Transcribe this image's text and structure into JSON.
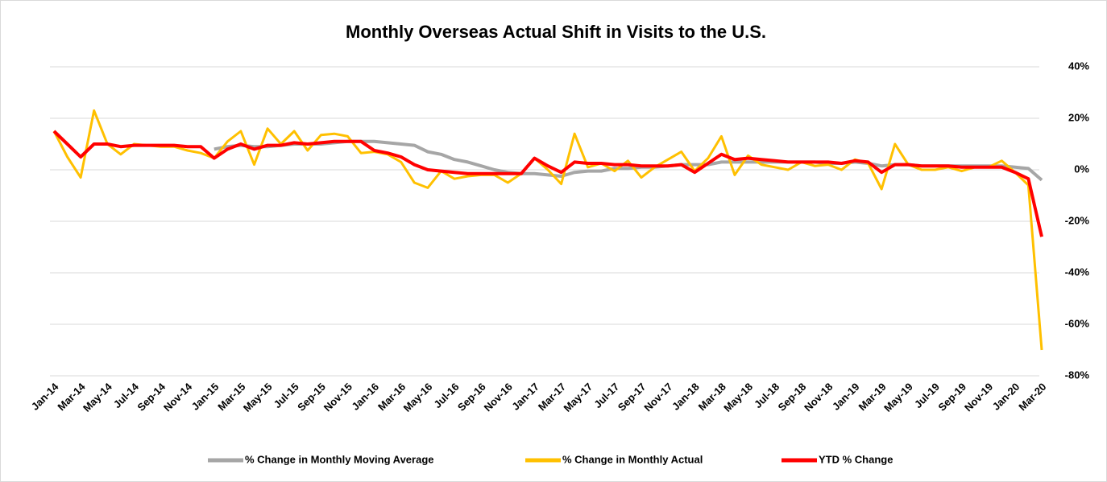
{
  "chart_data": {
    "type": "line",
    "title": "Monthly Overseas Actual Shift in Visits to the U.S.",
    "categories": [
      "Jan-14",
      null,
      "Mar-14",
      null,
      "May-14",
      null,
      "Jul-14",
      null,
      "Sep-14",
      null,
      "Nov-14",
      null,
      "Jan-15",
      null,
      "Mar-15",
      null,
      "May-15",
      null,
      "Jul-15",
      null,
      "Sep-15",
      null,
      "Nov-15",
      null,
      "Jan-16",
      null,
      "Mar-16",
      null,
      "May-16",
      null,
      "Jul-16",
      null,
      "Sep-16",
      null,
      "Nov-16",
      null,
      "Jan-17",
      null,
      "Mar-17",
      null,
      "May-17",
      null,
      "Jul-17",
      null,
      "Sep-17",
      null,
      "Nov-17",
      null,
      "Jan-18",
      null,
      "Mar-18",
      null,
      "May-18",
      null,
      "Jul-18",
      null,
      "Sep-18",
      null,
      "Nov-18",
      null,
      "Jan-19",
      null,
      "Mar-19",
      null,
      "May-19",
      null,
      "Jul-19",
      null,
      "Sep-19",
      null,
      "Nov-19",
      null,
      "Jan-20",
      null,
      "Mar-20"
    ],
    "series": [
      {
        "name": "% Change in Monthly Moving Average",
        "color": "#a6a6a6",
        "width": 4,
        "values": [
          null,
          null,
          null,
          null,
          null,
          null,
          null,
          null,
          null,
          null,
          null,
          null,
          8,
          9,
          9.5,
          9,
          9,
          9.5,
          10,
          10,
          10,
          10.5,
          11,
          11,
          11,
          10.5,
          10,
          9.5,
          7,
          6,
          4,
          3,
          1.5,
          0,
          -1,
          -1.5,
          -1.5,
          -2,
          -2.5,
          -1,
          -0.5,
          -0.5,
          0.5,
          0.5,
          1,
          1,
          1.5,
          2,
          2,
          2,
          3,
          3,
          3,
          3,
          3,
          3,
          3,
          3,
          2.5,
          2.5,
          3,
          2.5,
          1.5,
          2,
          2,
          1.5,
          1.5,
          1.5,
          1.5,
          1.5,
          1.5,
          1.5,
          1,
          0.5,
          -4
        ]
      },
      {
        "name": "% Change in Monthly Actual",
        "color": "#ffc000",
        "width": 3,
        "values": [
          15,
          5,
          -3,
          23,
          10,
          6,
          10,
          9.5,
          9,
          9,
          7.5,
          6.5,
          4.5,
          11,
          15,
          2,
          16,
          10,
          15,
          7.5,
          13.5,
          14,
          13,
          6.5,
          7,
          6,
          3,
          -5,
          -7,
          -0.5,
          -3.5,
          -2.5,
          -2,
          -2,
          -5,
          -1.5,
          4.5,
          0,
          -5.5,
          14,
          1,
          2.5,
          -0.5,
          3.5,
          -3,
          1,
          4,
          7,
          -0.5,
          4.5,
          13,
          -2,
          5.5,
          2,
          1,
          0,
          3,
          1.5,
          2,
          0,
          4,
          2.5,
          -7.5,
          10,
          2,
          0,
          0,
          1,
          -0.5,
          1,
          1,
          3.5,
          -1,
          -6,
          -70
        ]
      },
      {
        "name": "YTD % Change",
        "color": "#ff0000",
        "width": 4,
        "values": [
          15,
          10,
          5,
          10,
          10,
          9,
          9.5,
          9.5,
          9.5,
          9.5,
          9,
          9,
          4.5,
          8,
          10,
          8,
          9.5,
          9.5,
          10.5,
          10,
          10.5,
          11,
          11,
          11,
          7.5,
          6.5,
          5,
          2,
          0,
          -0.5,
          -1,
          -1.5,
          -1.5,
          -1.5,
          -1.5,
          -1.5,
          4.5,
          1.5,
          -1,
          3,
          2.5,
          2.5,
          2,
          2,
          1.5,
          1.5,
          1.5,
          2,
          -1,
          2.5,
          6,
          4,
          4.5,
          4,
          3.5,
          3,
          3,
          3,
          3,
          2.5,
          3.5,
          3,
          -1,
          2,
          2,
          1.5,
          1.5,
          1.5,
          1,
          1,
          1,
          1,
          -1,
          -3.5,
          -26
        ]
      }
    ],
    "ylim": [
      -80,
      40
    ],
    "yticks": [
      {
        "value": -80,
        "label": "-80%"
      },
      {
        "value": -60,
        "label": "-60%"
      },
      {
        "value": -40,
        "label": "-40%"
      },
      {
        "value": -20,
        "label": "-20%"
      },
      {
        "value": 0,
        "label": "0%"
      },
      {
        "value": 20,
        "label": "20%"
      },
      {
        "value": 40,
        "label": "40%"
      }
    ],
    "grid": true,
    "legend": "bottom"
  }
}
